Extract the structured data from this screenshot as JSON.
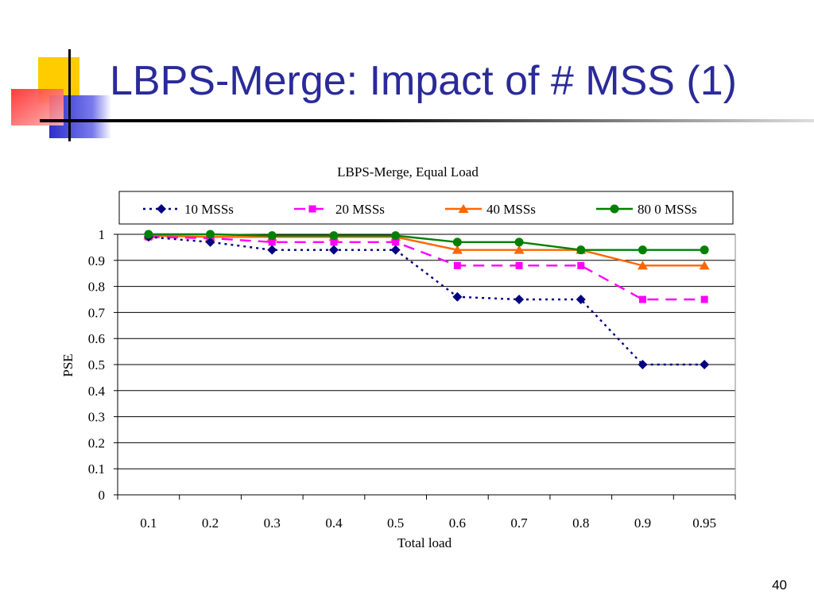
{
  "slide": {
    "title": "LBPS-Merge: Impact of # MSS (1)",
    "page_number": "40"
  },
  "colors": {
    "title": "#2a2a9a",
    "deco_yellow": "#ffcc00",
    "deco_blue": "#3333cc",
    "deco_red": "#ff3333"
  },
  "chart_data": {
    "type": "line",
    "title": "LBPS-Merge, Equal Load",
    "xlabel": "Total load",
    "ylabel": "PSE",
    "categories": [
      "0.1",
      "0.2",
      "0.3",
      "0.4",
      "0.5",
      "0.6",
      "0.7",
      "0.8",
      "0.9",
      "0.95"
    ],
    "ylim": [
      0,
      1
    ],
    "yticks": [
      "0",
      "0.1",
      "0.2",
      "0.3",
      "0.4",
      "0.5",
      "0.6",
      "0.7",
      "0.8",
      "0.9",
      "1"
    ],
    "grid": true,
    "legend_position": "top",
    "series": [
      {
        "name": "10 MSSs",
        "color": "#000080",
        "marker": "diamond",
        "dash": "dotted",
        "values": [
          0.99,
          0.97,
          0.94,
          0.94,
          0.94,
          0.76,
          0.75,
          0.75,
          0.5,
          0.5
        ]
      },
      {
        "name": "20 MSSs",
        "color": "#ff00ff",
        "marker": "square",
        "dash": "dashed",
        "values": [
          0.99,
          0.985,
          0.97,
          0.97,
          0.97,
          0.88,
          0.88,
          0.88,
          0.75,
          0.75
        ]
      },
      {
        "name": "40 MSSs",
        "color": "#ff6600",
        "marker": "triangle",
        "dash": "solid",
        "values": [
          0.995,
          0.99,
          0.99,
          0.99,
          0.99,
          0.94,
          0.94,
          0.94,
          0.88,
          0.88
        ]
      },
      {
        "name": "80 0 MSSs",
        "color": "#008000",
        "marker": "circle",
        "dash": "solid",
        "values": [
          1.0,
          1.0,
          0.995,
          0.995,
          0.995,
          0.97,
          0.97,
          0.94,
          0.94,
          0.94
        ]
      }
    ]
  }
}
